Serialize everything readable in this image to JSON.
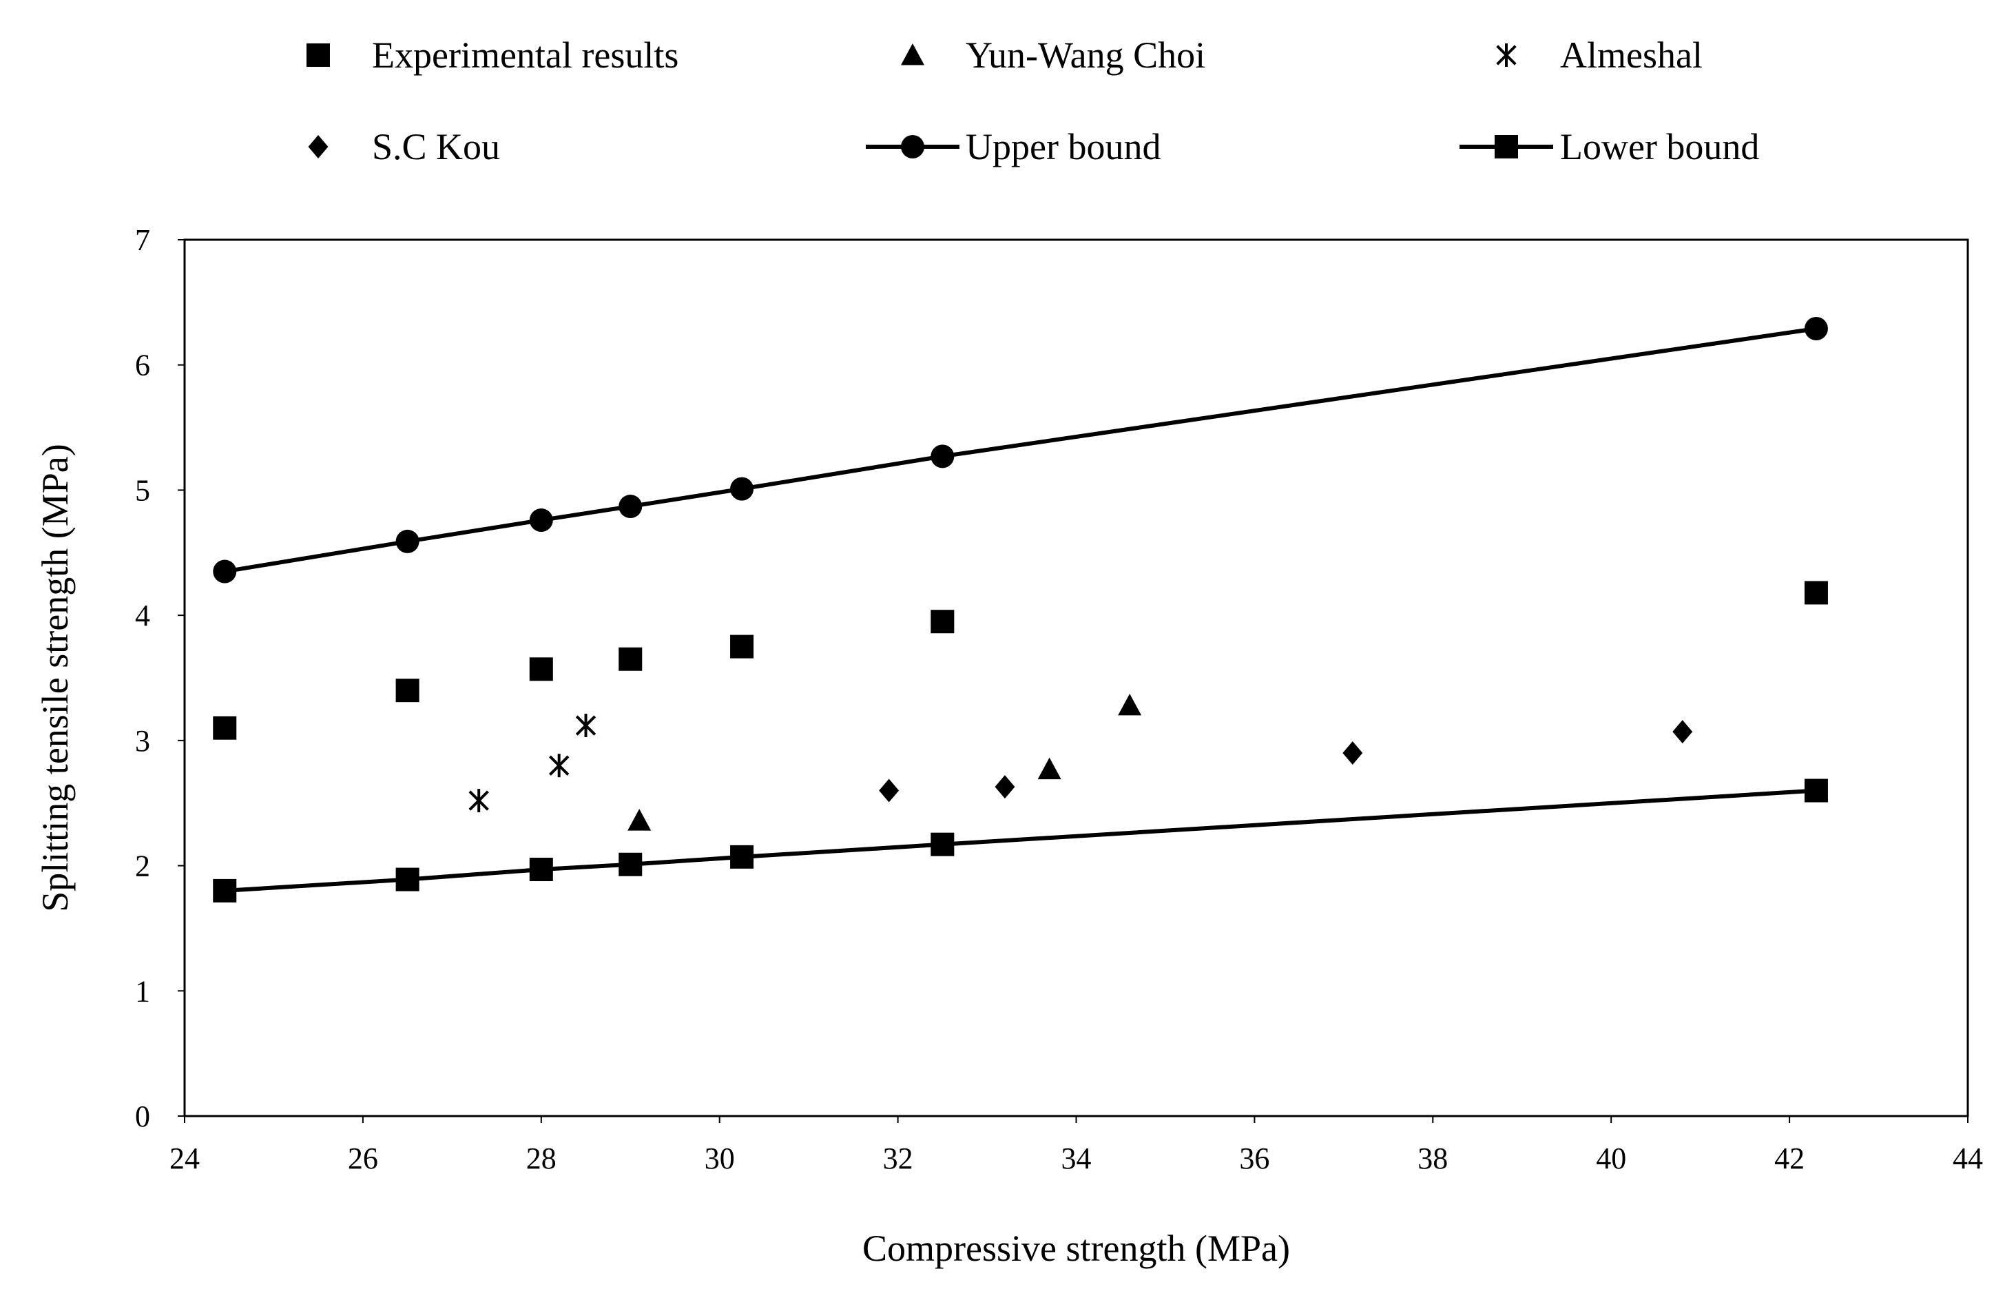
{
  "chart_data": {
    "type": "scatter",
    "title": "",
    "xlabel": "Compressive strength (MPa)",
    "ylabel": "Splitting tensile strength (MPa)",
    "xlim": [
      24,
      44
    ],
    "ylim": [
      0,
      7
    ],
    "x_ticks": [
      24,
      26,
      28,
      30,
      32,
      34,
      36,
      38,
      40,
      42,
      44
    ],
    "y_ticks": [
      0,
      1,
      2,
      3,
      4,
      5,
      6,
      7
    ],
    "grid": false,
    "legend_position": "top",
    "series": [
      {
        "name": "Experimental results",
        "marker": "square",
        "line": false,
        "color": "#000000",
        "points": [
          [
            24.45,
            3.1
          ],
          [
            26.5,
            3.4
          ],
          [
            28.0,
            3.57
          ],
          [
            29.0,
            3.65
          ],
          [
            30.25,
            3.75
          ],
          [
            32.5,
            3.95
          ],
          [
            42.3,
            4.18
          ]
        ]
      },
      {
        "name": "Yun-Wang Choi",
        "marker": "triangle",
        "line": false,
        "color": "#000000",
        "points": [
          [
            29.1,
            2.36
          ],
          [
            33.7,
            2.77
          ],
          [
            34.6,
            3.28
          ]
        ]
      },
      {
        "name": "Almeshal",
        "marker": "asterisk",
        "line": false,
        "color": "#000000",
        "points": [
          [
            27.3,
            2.52
          ],
          [
            28.2,
            2.8
          ],
          [
            28.5,
            3.12
          ]
        ]
      },
      {
        "name": "S.C Kou",
        "marker": "diamond",
        "line": false,
        "color": "#000000",
        "points": [
          [
            31.9,
            2.6
          ],
          [
            33.2,
            2.63
          ],
          [
            37.1,
            2.9
          ],
          [
            40.8,
            3.07
          ]
        ]
      },
      {
        "name": "Upper bound",
        "marker": "circle",
        "line": true,
        "color": "#000000",
        "points": [
          [
            24.45,
            4.35
          ],
          [
            26.5,
            4.59
          ],
          [
            28.0,
            4.76
          ],
          [
            29.0,
            4.87
          ],
          [
            30.25,
            5.01
          ],
          [
            32.5,
            5.27
          ],
          [
            42.3,
            6.29
          ]
        ]
      },
      {
        "name": "Lower bound",
        "marker": "square",
        "line": true,
        "color": "#000000",
        "points": [
          [
            24.45,
            1.8
          ],
          [
            26.5,
            1.89
          ],
          [
            28.0,
            1.97
          ],
          [
            29.0,
            2.01
          ],
          [
            30.25,
            2.07
          ],
          [
            32.5,
            2.17
          ],
          [
            42.3,
            2.6
          ]
        ]
      }
    ]
  }
}
